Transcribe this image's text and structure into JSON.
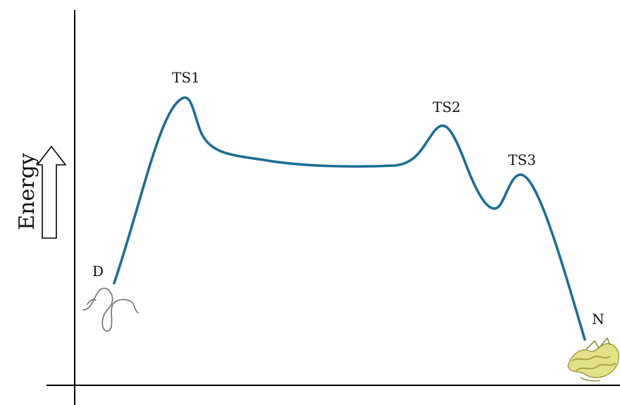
{
  "diagram": {
    "y_axis_label": "Energy",
    "states": [
      {
        "id": "D",
        "label": "D"
      },
      {
        "id": "TS1",
        "label": "TS1"
      },
      {
        "id": "TS2",
        "label": "TS2"
      },
      {
        "id": "TS3",
        "label": "TS3"
      },
      {
        "id": "N",
        "label": "N"
      }
    ],
    "colors": {
      "curve": "#1a6e96",
      "axes": "#000000",
      "denatured_chain": "#707070",
      "native_protein": "#d9d66a"
    },
    "icons": {
      "denatured": "unfolded-chain-icon",
      "native": "folded-protein-icon",
      "arrow": "up-arrow-icon"
    }
  }
}
